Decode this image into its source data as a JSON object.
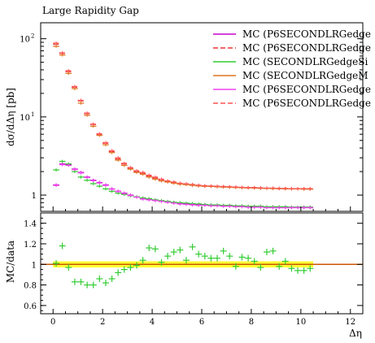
{
  "chart_data": [
    {
      "type": "scatter",
      "title": "Large Rapidity Gap",
      "xlabel": "",
      "ylabel": "dσ/dΔη [pb]",
      "yscale": "log",
      "xlim": [
        -0.5,
        12.5
      ],
      "ylim": [
        0.62,
        160
      ],
      "ytick_labels": [
        {
          "value": 100,
          "base": "10",
          "exp": "2"
        },
        {
          "value": 10,
          "base": "10",
          "exp": "1"
        },
        {
          "value": 1,
          "base": "1",
          "exp": ""
        }
      ],
      "legend_placement": "top-right",
      "x": [
        0.125,
        0.375,
        0.625,
        0.875,
        1.125,
        1.375,
        1.625,
        1.875,
        2.125,
        2.375,
        2.625,
        2.875,
        3.125,
        3.375,
        3.625,
        3.875,
        4.125,
        4.375,
        4.625,
        4.875,
        5.125,
        5.375,
        5.625,
        5.875,
        6.125,
        6.375,
        6.625,
        6.875,
        7.125,
        7.375,
        7.625,
        7.875,
        8.125,
        8.375,
        8.625,
        8.875,
        9.125,
        9.375,
        9.625,
        9.875,
        10.125,
        10.375
      ],
      "series": [
        {
          "name": "MC (P6SECONDLRGedge",
          "color": "#cc00cc",
          "style": "solid",
          "values": [
            1.35,
            2.5,
            2.45,
            2.15,
            1.95,
            1.7,
            1.55,
            1.45,
            1.35,
            1.2,
            1.12,
            1.06,
            1.0,
            0.95,
            0.9,
            0.88,
            0.86,
            0.84,
            0.82,
            0.8,
            0.78,
            0.77,
            0.76,
            0.75,
            0.75,
            0.74,
            0.74,
            0.73,
            0.73,
            0.72,
            0.72,
            0.71,
            0.71,
            0.71,
            0.7,
            0.7,
            0.7,
            0.7,
            0.7,
            0.7,
            0.7,
            0.7
          ]
        },
        {
          "name": "MC (P6SECONDLRGedge",
          "color": "#ee3333",
          "style": "dashed",
          "values": [
            85,
            65,
            38,
            24,
            16,
            11,
            8,
            6,
            4.6,
            3.6,
            2.9,
            2.5,
            2.2,
            2.0,
            1.9,
            1.75,
            1.65,
            1.55,
            1.5,
            1.45,
            1.4,
            1.38,
            1.35,
            1.32,
            1.3,
            1.3,
            1.28,
            1.27,
            1.27,
            1.26,
            1.25,
            1.24,
            1.24,
            1.23,
            1.22,
            1.22,
            1.21,
            1.21,
            1.2,
            1.2,
            1.2,
            1.2
          ]
        },
        {
          "name": "MC (SECONDLRGedgeSi",
          "color": "#33cc33",
          "style": "solid",
          "values": [
            2.1,
            2.7,
            2.5,
            2.0,
            1.7,
            1.55,
            1.4,
            1.3,
            1.2,
            1.12,
            1.06,
            1.02,
            0.98,
            0.95,
            0.92,
            0.9,
            0.87,
            0.85,
            0.83,
            0.81,
            0.8,
            0.79,
            0.78,
            0.77,
            0.76,
            0.75,
            0.75,
            0.74,
            0.74,
            0.73,
            0.73,
            0.72,
            0.72,
            0.72,
            0.71,
            0.71,
            0.71,
            0.71,
            0.7,
            0.7,
            0.7,
            0.7
          ]
        },
        {
          "name": "MC (SECONDLRGedgeM",
          "color": "#dd7722",
          "style": "solid",
          "values": [
            80,
            62,
            36,
            23,
            15,
            10.5,
            7.6,
            5.8,
            4.4,
            3.5,
            2.8,
            2.4,
            2.15,
            1.95,
            1.85,
            1.7,
            1.6,
            1.52,
            1.47,
            1.42,
            1.38,
            1.36,
            1.33,
            1.31,
            1.3,
            1.29,
            1.28,
            1.27,
            1.26,
            1.25,
            1.24,
            1.24,
            1.23,
            1.22,
            1.22,
            1.21,
            1.21,
            1.2,
            1.2,
            1.2,
            1.19,
            1.19
          ]
        },
        {
          "name": "MC (P6SECONDLRGedge",
          "color": "#ee44ee",
          "style": "solid",
          "values": [
            1.33,
            2.45,
            2.4,
            2.12,
            1.92,
            1.68,
            1.53,
            1.43,
            1.33,
            1.19,
            1.11,
            1.05,
            0.99,
            0.94,
            0.89,
            0.87,
            0.85,
            0.83,
            0.81,
            0.79,
            0.77,
            0.76,
            0.75,
            0.74,
            0.74,
            0.73,
            0.73,
            0.72,
            0.72,
            0.71,
            0.71,
            0.7,
            0.7,
            0.7,
            0.69,
            0.69,
            0.69,
            0.69,
            0.69,
            0.69,
            0.69,
            0.69
          ]
        },
        {
          "name": "MC (P6SECONDLRGedge",
          "color": "#ff5555",
          "style": "dashed",
          "values": [
            88,
            66,
            39,
            24.5,
            16.3,
            11.2,
            8.1,
            6.1,
            4.7,
            3.7,
            3.0,
            2.55,
            2.25,
            2.05,
            1.95,
            1.8,
            1.7,
            1.6,
            1.52,
            1.47,
            1.42,
            1.4,
            1.37,
            1.34,
            1.32,
            1.31,
            1.3,
            1.29,
            1.28,
            1.27,
            1.26,
            1.25,
            1.25,
            1.24,
            1.23,
            1.23,
            1.22,
            1.22,
            1.21,
            1.21,
            1.21,
            1.21
          ]
        }
      ]
    },
    {
      "type": "scatter",
      "title": "",
      "xlabel": "Δη",
      "ylabel": "MC/data",
      "xlim": [
        -0.5,
        12.5
      ],
      "ylim": [
        0.52,
        1.5
      ],
      "xticks": [
        0,
        2,
        4,
        6,
        8,
        10,
        12
      ],
      "yticks": [
        0.6,
        0.8,
        1.0,
        1.2,
        1.4
      ],
      "ytick_labels": [
        "0.6",
        "0.8",
        "1",
        "1.2",
        "1.4"
      ],
      "reference_line": 1.0,
      "band": {
        "color": "#ffff33",
        "xrange": [
          0,
          10.5
        ],
        "half_width": 0.03
      },
      "series": [
        {
          "name": "",
          "color": "#33cc33",
          "x": [
            0.125,
            0.375,
            0.625,
            0.875,
            1.125,
            1.375,
            1.625,
            1.875,
            2.125,
            2.375,
            2.625,
            2.875,
            3.125,
            3.375,
            3.625,
            3.875,
            4.125,
            4.375,
            4.625,
            4.875,
            5.125,
            5.375,
            5.625,
            5.875,
            6.125,
            6.375,
            6.625,
            6.875,
            7.125,
            7.375,
            7.625,
            7.875,
            8.125,
            8.375,
            8.625,
            8.875,
            9.125,
            9.375,
            9.625,
            9.875,
            10.125,
            10.375
          ],
          "values": [
            1.01,
            1.18,
            0.97,
            0.83,
            0.83,
            0.8,
            0.8,
            0.86,
            0.82,
            0.86,
            0.92,
            0.95,
            0.97,
            0.99,
            1.04,
            1.16,
            1.15,
            1.02,
            1.08,
            1.12,
            1.14,
            1.04,
            1.17,
            1.1,
            1.08,
            1.06,
            1.06,
            1.13,
            1.08,
            0.98,
            1.07,
            1.06,
            1.03,
            0.97,
            1.12,
            1.13,
            0.98,
            1.03,
            0.96,
            0.94,
            0.94,
            0.96
          ]
        }
      ]
    }
  ]
}
